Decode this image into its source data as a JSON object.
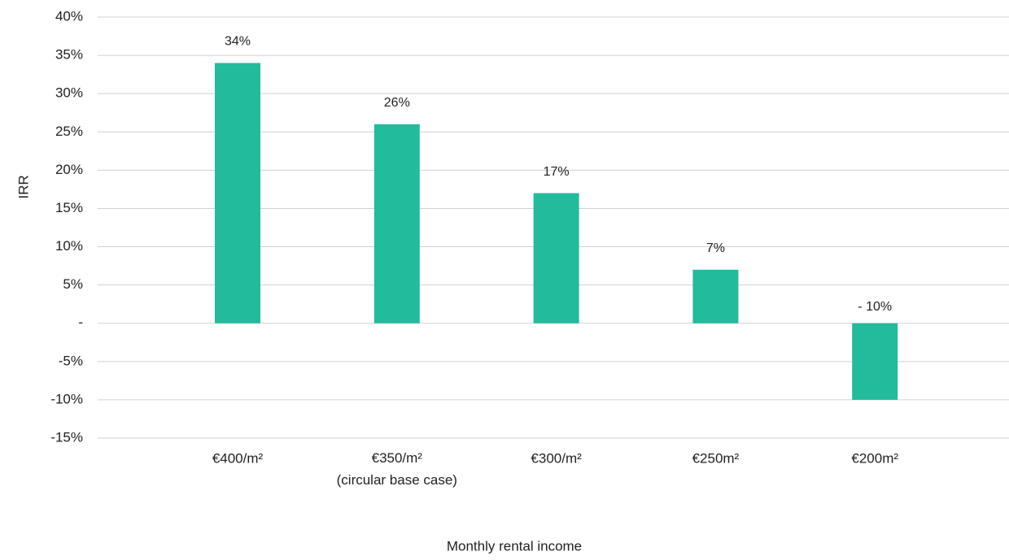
{
  "chart_data": {
    "type": "bar",
    "x_label": "Monthly rental income",
    "y_label": "IRR",
    "categories": [
      "€400/m²",
      "€350/m²\n(circular base case)",
      "€300/m²",
      "€250m²",
      "€200m²"
    ],
    "values": [
      34,
      26,
      17,
      7,
      -10
    ],
    "value_labels": [
      "34%",
      "26%",
      "17%",
      "7%",
      "- 10%"
    ],
    "color": "#22bb9b",
    "ylim": [
      -15,
      40
    ],
    "yticks": [
      {
        "value": -15,
        "label": "-15%"
      },
      {
        "value": -10,
        "label": "-10%"
      },
      {
        "value": -5,
        "label": "-5%"
      },
      {
        "value": 0,
        "label": "-"
      },
      {
        "value": 5,
        "label": "5%"
      },
      {
        "value": 10,
        "label": "10%"
      },
      {
        "value": 15,
        "label": "15%"
      },
      {
        "value": 20,
        "label": "20%"
      },
      {
        "value": 25,
        "label": "25%"
      },
      {
        "value": 30,
        "label": "30%"
      },
      {
        "value": 35,
        "label": "35%"
      },
      {
        "value": 40,
        "label": "40%"
      }
    ],
    "grid": true
  }
}
